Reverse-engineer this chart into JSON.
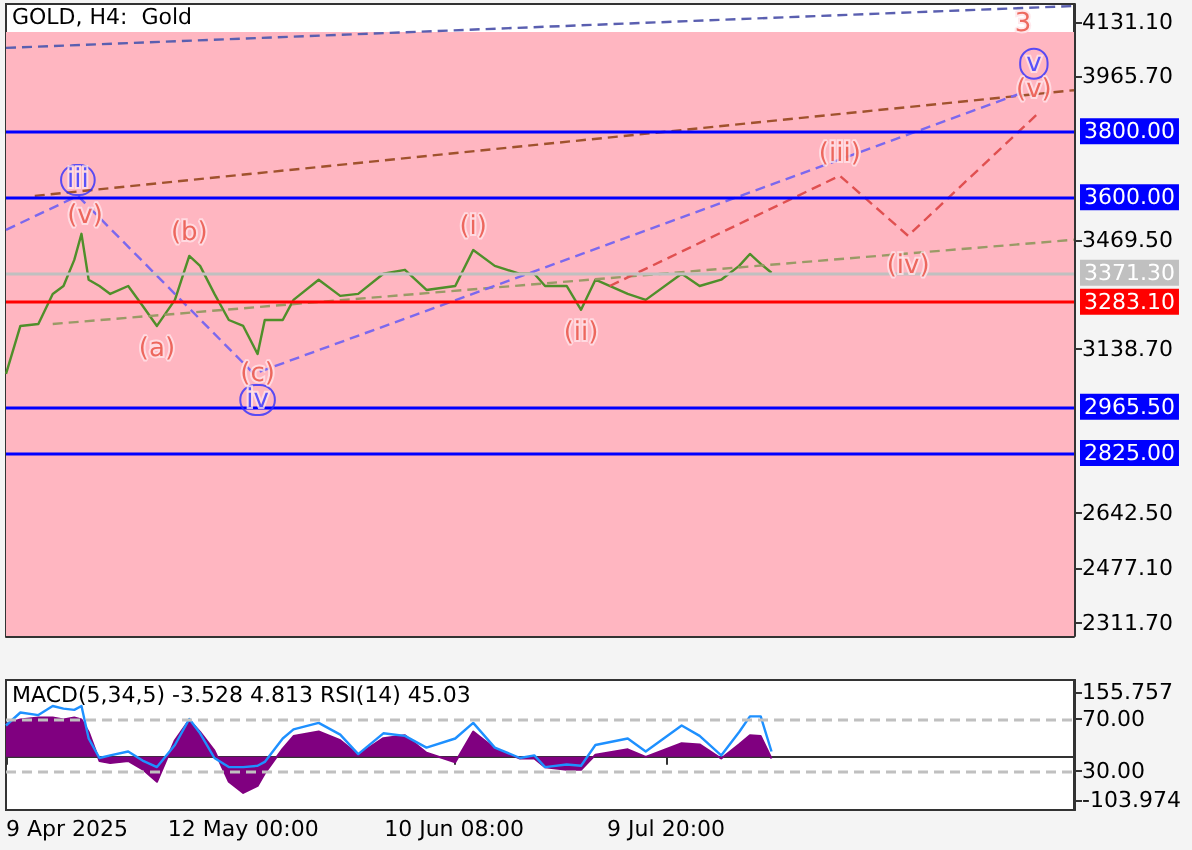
{
  "chart_data": [
    {
      "type": "line",
      "title": "GOLD, H4:  Gold",
      "tick_labels": "y",
      "marker": "none",
      "xlim": [
        "2025-04-09",
        "2025-09-04T14:00"
      ],
      "ylim": [
        2271,
        4185
      ],
      "yticks": [
        {
          "value": 4131.1,
          "label": "4131.10"
        },
        {
          "value": 3965.7,
          "label": "3965.70"
        },
        {
          "value": 3469.5,
          "label": "3469.50"
        },
        {
          "value": 3138.7,
          "label": "3138.70"
        },
        {
          "value": 2642.5,
          "label": "2642.50"
        },
        {
          "value": 2477.1,
          "label": "2477.10"
        },
        {
          "value": 2311.7,
          "label": "2311.70"
        }
      ],
      "x": [
        "2025-04-09",
        "2025-04-11",
        "2025-04-13T12:00",
        "2025-04-15T12:00",
        "2025-04-17",
        "2025-04-18T12:00",
        "2025-04-19T12:00",
        "2025-04-20T12:00",
        "2025-04-22",
        "2025-04-23T12:00",
        "2025-04-26",
        "2025-04-28",
        "2025-04-30",
        "2025-05-02T12:00",
        "2025-05-04T12:00",
        "2025-05-06",
        "2025-05-08",
        "2025-05-10",
        "2025-05-12",
        "2025-05-14",
        "2025-05-15",
        "2025-05-17T12:00",
        "2025-05-19",
        "2025-05-22T12:00",
        "2025-05-25T12:00",
        "2025-05-28",
        "2025-05-31T12:00",
        "2025-06-03T12:00",
        "2025-06-06T12:00",
        "2025-06-10T12:00",
        "2025-06-13",
        "2025-06-16",
        "2025-06-19T12:00",
        "2025-06-21T12:00",
        "2025-06-23",
        "2025-06-26",
        "2025-06-28",
        "2025-06-30",
        "2025-07-04T12:00",
        "2025-07-07",
        "2025-07-12",
        "2025-07-14T12:00",
        "2025-07-17T12:00",
        "2025-07-20",
        "2025-07-21T12:00",
        "2025-07-23",
        "2025-07-24T12:00"
      ],
      "series": [
        {
          "color": "#4f8f2a",
          "line_style": "solid",
          "values": [
            3065,
            3210,
            3216,
            3307,
            3331,
            3410,
            3489,
            3350,
            3331,
            3307,
            3331,
            3271,
            3210,
            3289,
            3422,
            3392,
            3307,
            3228,
            3210,
            3125,
            3228,
            3228,
            3289,
            3350,
            3301,
            3307,
            3368,
            3380,
            3319,
            3331,
            3440,
            3392,
            3368,
            3368,
            3331,
            3331,
            3259,
            3350,
            3307,
            3289,
            3368,
            3331,
            3350,
            3392,
            3428,
            3398,
            3371
          ]
        },
        {
          "color": "#5a5fb0",
          "line_style": "dashed",
          "x": [
            "2025-04-09",
            "2025-09-04T14:00"
          ],
          "values": [
            4052,
            4179
          ]
        },
        {
          "color": "#a0522d",
          "line_style": "dashed",
          "x": [
            "2025-04-13",
            "2025-09-04T14:00"
          ],
          "values": [
            3604,
            3924
          ]
        },
        {
          "color": "#9a9a66",
          "line_style": "dashed",
          "x": [
            "2025-04-15T12:00",
            "2025-09-04T14:00"
          ],
          "values": [
            3216,
            3471
          ]
        },
        {
          "color": "#7b68ee",
          "line_style": "dashed",
          "x": [
            "2025-04-09",
            "2025-04-19",
            "2025-05-13T12:00",
            "2025-08-28"
          ],
          "values": [
            3501,
            3604,
            3065,
            3913
          ]
        },
        {
          "color": "#e05050",
          "line_style": "dashed",
          "x": [
            "2025-07-02",
            "2025-08-03",
            "2025-08-12T12:00",
            "2025-08-30T12:00"
          ],
          "values": [
            3331,
            3665,
            3483,
            3852
          ]
        }
      ],
      "bands": [
        {
          "axis": "y",
          "from": 2271,
          "to": 4100,
          "color": "#ffb6c1"
        }
      ],
      "ref_lines": [
        {
          "axis": "y",
          "value": 3800,
          "label": "3800.00",
          "color": "#0000ff"
        },
        {
          "axis": "y",
          "value": 3600,
          "label": "3600.00",
          "color": "#0000ff"
        },
        {
          "axis": "y",
          "value": 3371.3,
          "label": "3371.30",
          "color": "#c0c0c0"
        },
        {
          "axis": "y",
          "value": 3283.1,
          "label": "3283.10",
          "color": "#ff0000"
        },
        {
          "axis": "y",
          "value": 2965.5,
          "label": "2965.50",
          "color": "#0000ff"
        },
        {
          "axis": "y",
          "value": 2825,
          "label": "2825.00",
          "color": "#0000ff"
        }
      ],
      "annotations": [
        {
          "text": "iii",
          "x": "2025-04-19",
          "y": 3652
        },
        {
          "text": "iv",
          "x": "2025-05-14",
          "y": 2986
        },
        {
          "text": "v",
          "x": "2025-08-30",
          "y": 4004
        },
        {
          "text": "(v)",
          "x": "2025-04-20",
          "y": 3543
        },
        {
          "text": "(a)",
          "x": "2025-04-30",
          "y": 3210
        },
        {
          "text": "(b)",
          "x": "2025-05-04T12:00",
          "y": 3422
        },
        {
          "text": "(c)",
          "x": "2025-05-14",
          "y": 3065
        },
        {
          "text": "(i)",
          "x": "2025-06-13",
          "y": 3440
        },
        {
          "text": "(ii)",
          "x": "2025-06-28",
          "y": 3259
        },
        {
          "text": "(iii)",
          "x": "2025-08-03",
          "y": 3731
        },
        {
          "text": "(iv)",
          "x": "2025-08-12T12:00",
          "y": 3392
        },
        {
          "text": "(v)",
          "x": "2025-08-30",
          "y": 3925
        },
        {
          "text": "3",
          "x": "2025-08-28T12:00",
          "y": 4125
        }
      ]
    },
    {
      "type": "line",
      "title": "MACD(5,34,5) -3.528 4.813 RSI(14) 45.03",
      "marker": "none",
      "xlim": [
        "2025-04-09",
        "2025-09-04T14:00"
      ],
      "xticks": [
        {
          "value": "2025-04-09",
          "label": "9 Apr 2025"
        },
        {
          "value": "2025-05-12T00:00",
          "label": "12 May 00:00"
        },
        {
          "value": "2025-06-10T08:00",
          "label": "10 Jun 08:00"
        },
        {
          "value": "2025-07-09T20:00",
          "label": "9 Jul 20:00"
        }
      ],
      "ylim": [
        -128,
        185
      ],
      "yticks": [
        155.757,
        -103.974
      ],
      "y2lim": [
        0,
        100
      ],
      "y2ticks": [
        {
          "value": 70,
          "label": "70.00"
        },
        {
          "value": 30,
          "label": "30.00"
        }
      ],
      "x": [
        "2025-04-09",
        "2025-04-11",
        "2025-04-13T12:00",
        "2025-04-15T12:00",
        "2025-04-17",
        "2025-04-18T12:00",
        "2025-04-19T12:00",
        "2025-04-20T12:00",
        "2025-04-22",
        "2025-04-23T12:00",
        "2025-04-26",
        "2025-04-28",
        "2025-04-30",
        "2025-05-02T12:00",
        "2025-05-04T12:00",
        "2025-05-06",
        "2025-05-08",
        "2025-05-10",
        "2025-05-12",
        "2025-05-14",
        "2025-05-15",
        "2025-05-17T12:00",
        "2025-05-19",
        "2025-05-22T12:00",
        "2025-05-25T12:00",
        "2025-05-28",
        "2025-05-31T12:00",
        "2025-06-03T12:00",
        "2025-06-06T12:00",
        "2025-06-10T12:00",
        "2025-06-13",
        "2025-06-16",
        "2025-06-19T12:00",
        "2025-06-21T12:00",
        "2025-06-23",
        "2025-06-26",
        "2025-06-28",
        "2025-06-30",
        "2025-07-04T12:00",
        "2025-07-07",
        "2025-07-12",
        "2025-07-14T12:00",
        "2025-07-17T12:00",
        "2025-07-20",
        "2025-07-21T12:00",
        "2025-07-23",
        "2025-07-24T12:00"
      ],
      "series": [
        {
          "type": "area",
          "color": "#800080",
          "values": [
            80,
            90,
            95,
            95,
            90,
            95,
            90,
            60,
            -10,
            -15,
            -10,
            -30,
            -60,
            40,
            89,
            60,
            15,
            -60,
            -87,
            -70,
            -40,
            20,
            50,
            61,
            40,
            5,
            45,
            52,
            10,
            -13,
            61,
            20,
            -4,
            -4,
            -25,
            -31,
            -31,
            5,
            18,
            0,
            33,
            30,
            -4,
            30,
            52,
            50,
            -4
          ]
        },
        {
          "axis": "y2",
          "color": "#1e90ff",
          "values": [
            65,
            75,
            73,
            80,
            78,
            77,
            80,
            55,
            40,
            42,
            45,
            38,
            33,
            50,
            70,
            59,
            40,
            33,
            33,
            34,
            37,
            55,
            62,
            67,
            58,
            43,
            59,
            57,
            48,
            55,
            67,
            48,
            40,
            42,
            33,
            35,
            34,
            50,
            55,
            45,
            65,
            57,
            42,
            60,
            72,
            72,
            45
          ]
        }
      ],
      "ref_lines": [
        {
          "axis": "y2",
          "value": 70,
          "color": "#c0c0c0",
          "line_style": "dashed"
        },
        {
          "axis": "y2",
          "value": 30,
          "color": "#c0c0c0",
          "line_style": "dashed"
        }
      ]
    }
  ]
}
